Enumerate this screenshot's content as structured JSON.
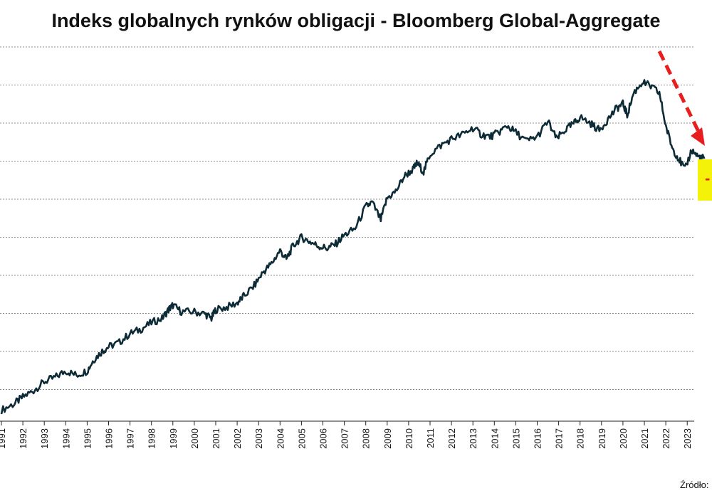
{
  "chart_data": {
    "type": "line",
    "title": "Indeks globalnych rynków obligacji - Bloomberg Global-Aggregate",
    "xlabel": "",
    "ylabel": "",
    "x_tick_labels": [
      "1991",
      "1992",
      "1993",
      "1994",
      "1995",
      "1996",
      "1997",
      "1998",
      "1999",
      "2000",
      "2001",
      "2002",
      "2003",
      "2004",
      "2005",
      "2006",
      "2007",
      "2008",
      "2009",
      "2010",
      "2011",
      "2012",
      "2013",
      "2014",
      "2015",
      "2016",
      "2017",
      "2018",
      "2019",
      "2020",
      "2021",
      "2022",
      "2023"
    ],
    "y_gridlines": 10,
    "y_relative_level_note": "",
    "series": [
      {
        "name": "",
        "color": "#0d2b36",
        "points": [
          [
            1991.0,
            0.5
          ],
          [
            1991.6,
            0.8
          ],
          [
            1992.0,
            1.1
          ],
          [
            1992.5,
            1.4
          ],
          [
            1993.0,
            1.8
          ],
          [
            1993.5,
            2.0
          ],
          [
            1994.0,
            2.3
          ],
          [
            1994.5,
            2.1
          ],
          [
            1995.0,
            2.3
          ],
          [
            1995.3,
            2.8
          ],
          [
            1995.7,
            3.2
          ],
          [
            1996.0,
            3.4
          ],
          [
            1996.5,
            3.6
          ],
          [
            1997.0,
            4.0
          ],
          [
            1997.5,
            4.2
          ],
          [
            1998.0,
            4.5
          ],
          [
            1998.5,
            4.7
          ],
          [
            1998.8,
            5.1
          ],
          [
            1999.0,
            5.3
          ],
          [
            1999.4,
            5.0
          ],
          [
            2000.0,
            5.0
          ],
          [
            2000.5,
            4.9
          ],
          [
            2000.8,
            4.7
          ],
          [
            2001.0,
            5.1
          ],
          [
            2001.5,
            5.2
          ],
          [
            2002.0,
            5.4
          ],
          [
            2002.3,
            5.7
          ],
          [
            2002.8,
            6.2
          ],
          [
            2003.2,
            6.8
          ],
          [
            2003.6,
            7.2
          ],
          [
            2004.0,
            7.8
          ],
          [
            2004.3,
            7.4
          ],
          [
            2004.6,
            8.0
          ],
          [
            2005.0,
            8.4
          ],
          [
            2005.4,
            8.2
          ],
          [
            2005.8,
            8.0
          ],
          [
            2006.2,
            7.9
          ],
          [
            2006.6,
            8.1
          ],
          [
            2007.0,
            8.5
          ],
          [
            2007.5,
            8.8
          ],
          [
            2008.0,
            9.8
          ],
          [
            2008.3,
            10.0
          ],
          [
            2008.7,
            9.2
          ],
          [
            2009.0,
            10.2
          ],
          [
            2009.4,
            10.5
          ],
          [
            2009.8,
            11.2
          ],
          [
            2010.2,
            11.5
          ],
          [
            2010.4,
            11.8
          ],
          [
            2010.7,
            11.4
          ],
          [
            2011.0,
            12.2
          ],
          [
            2011.5,
            12.6
          ],
          [
            2012.0,
            12.9
          ],
          [
            2012.5,
            13.1
          ],
          [
            2013.0,
            13.4
          ],
          [
            2013.4,
            13.1
          ],
          [
            2013.8,
            13.0
          ],
          [
            2014.2,
            13.2
          ],
          [
            2014.6,
            13.5
          ],
          [
            2015.0,
            13.2
          ],
          [
            2015.5,
            12.8
          ],
          [
            2016.0,
            13.0
          ],
          [
            2016.5,
            13.7
          ],
          [
            2016.9,
            12.9
          ],
          [
            2017.3,
            13.3
          ],
          [
            2017.7,
            13.6
          ],
          [
            2018.0,
            13.9
          ],
          [
            2018.5,
            13.6
          ],
          [
            2018.9,
            13.3
          ],
          [
            2019.3,
            13.8
          ],
          [
            2019.7,
            14.3
          ],
          [
            2020.0,
            14.5
          ],
          [
            2020.2,
            14.0
          ],
          [
            2020.5,
            15.0
          ],
          [
            2020.9,
            15.5
          ],
          [
            2021.3,
            15.3
          ],
          [
            2021.7,
            15.0
          ],
          [
            2022.0,
            13.5
          ],
          [
            2022.3,
            12.5
          ],
          [
            2022.6,
            12.0
          ],
          [
            2022.9,
            11.5
          ],
          [
            2023.2,
            12.4
          ],
          [
            2023.5,
            12.1
          ],
          [
            2023.8,
            12.0
          ]
        ]
      }
    ]
  },
  "source_text": "Źródło:",
  "highlight_text": "-",
  "arrow_color": "#e81e1e",
  "highlight_color": "#f5f20a",
  "gridline_color": "#8c8c8c"
}
